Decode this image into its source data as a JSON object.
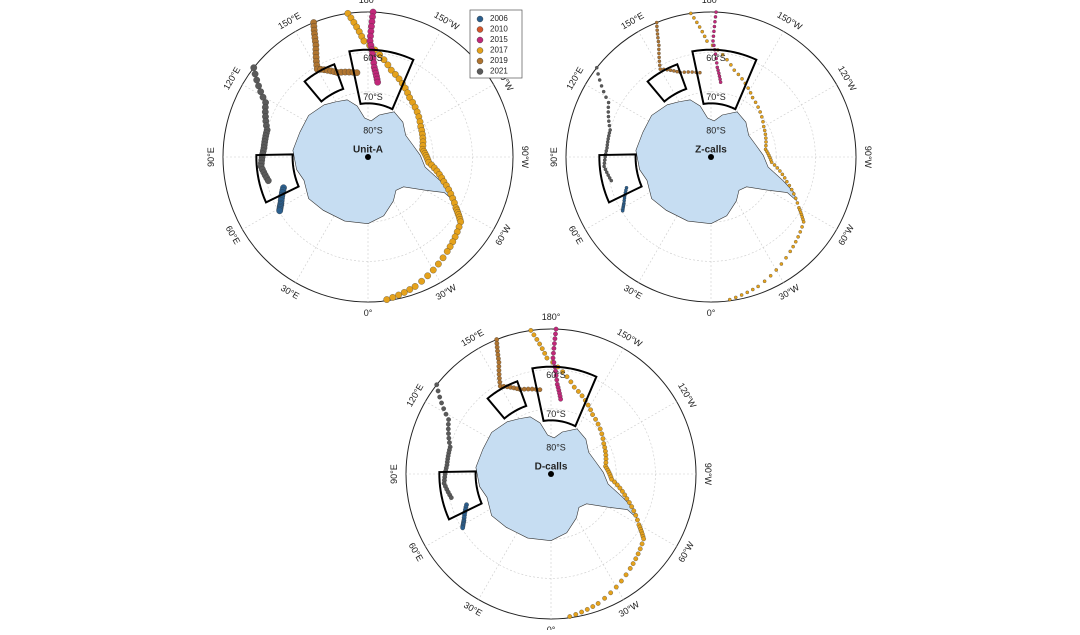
{
  "maps": [
    {
      "title": "Unit-A"
    },
    {
      "title": "Z-calls"
    },
    {
      "title": "D-calls"
    }
  ],
  "graticule": {
    "longitude_labels": [
      "0°",
      "30°E",
      "60°E",
      "90°E",
      "120°E",
      "150°E",
      "180°",
      "150°W",
      "120°W",
      "90°W",
      "60°W",
      "30°W"
    ],
    "latitude_labels": [
      "60°S",
      "70°S",
      "80°S"
    ]
  },
  "legend": [
    {
      "label": "2006",
      "color": "#2b5f8e"
    },
    {
      "label": "2010",
      "color": "#d4562b"
    },
    {
      "label": "2015",
      "color": "#c2287a"
    },
    {
      "label": "2017",
      "color": "#e5a21c"
    },
    {
      "label": "2019",
      "color": "#b07530"
    },
    {
      "label": "2021",
      "color": "#5a5a5a"
    }
  ]
}
